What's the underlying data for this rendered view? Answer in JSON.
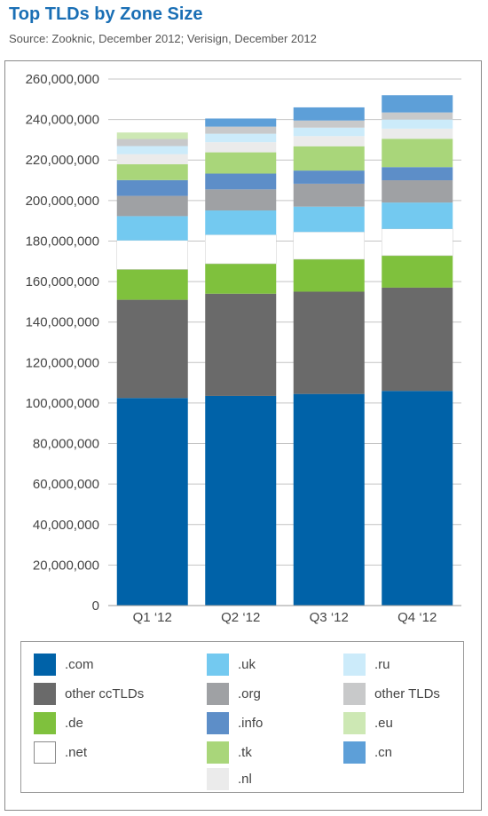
{
  "title": "Top TLDs by Zone Size",
  "subtitle": "Source: Zooknic, December 2012; Verisign, December 2012",
  "chart_data": {
    "type": "bar",
    "stacked": true,
    "categories": [
      "Q1 ‘12",
      "Q2 ‘12",
      "Q3 ‘12",
      "Q4 ‘12"
    ],
    "ylim": [
      0,
      260000000
    ],
    "yticks": [
      0,
      20000000,
      40000000,
      60000000,
      80000000,
      100000000,
      120000000,
      140000000,
      160000000,
      180000000,
      200000000,
      220000000,
      240000000,
      260000000
    ],
    "ytick_labels": [
      "0",
      "20,000,000",
      "40,000,000",
      "60,000,000",
      "80,000,000",
      "100,000,000",
      "120,000,000",
      "140,000,000",
      "160,000,000",
      "180,000,000",
      "200,000,000",
      "220,000,000",
      "240,000,000",
      "260,000,000"
    ],
    "grid": true,
    "legend_position": "bottom",
    "series": [
      {
        "name": ".com",
        "color": "#0062a8",
        "values": [
          102500000,
          103500000,
          104500000,
          106000000
        ]
      },
      {
        "name": "other ccTLDs",
        "color": "#6a6a6a",
        "values": [
          48500000,
          50500000,
          50500000,
          51000000
        ]
      },
      {
        "name": ".de",
        "color": "#7fc13d",
        "values": [
          15000000,
          14800000,
          16000000,
          15800000
        ]
      },
      {
        "name": ".net",
        "color": "#ffffff",
        "border": "#cccccc",
        "values": [
          14300000,
          14300000,
          13500000,
          13200000
        ]
      },
      {
        "name": ".uk",
        "color": "#73c9f0",
        "values": [
          12000000,
          12000000,
          12500000,
          13000000
        ]
      },
      {
        "name": ".org",
        "color": "#9fa1a4",
        "values": [
          10000000,
          10400000,
          11300000,
          11000000
        ]
      },
      {
        "name": ".info",
        "color": "#5d8ec8",
        "values": [
          7800000,
          7800000,
          6500000,
          6500000
        ]
      },
      {
        "name": ".tk",
        "color": "#a9d67a",
        "values": [
          7800000,
          10500000,
          12000000,
          14000000
        ]
      },
      {
        "name": ".nl",
        "color": "#ebebeb",
        "values": [
          5000000,
          5000000,
          5000000,
          5000000
        ]
      },
      {
        "name": ".ru",
        "color": "#ccebfa",
        "values": [
          4000000,
          4200000,
          4200000,
          4500000
        ]
      },
      {
        "name": "other TLDs",
        "color": "#c8c9ca",
        "values": [
          3500000,
          3500000,
          3500000,
          3500000
        ]
      },
      {
        "name": ".eu",
        "color": "#cde8b4",
        "values": [
          3200000,
          0,
          0,
          0
        ]
      },
      {
        "name": ".cn",
        "color": "#5d9fd8",
        "values": [
          0,
          4000000,
          6500000,
          8500000
        ]
      }
    ]
  },
  "legend": [
    {
      "name": ".com",
      "color": "#0062a8",
      "border": "#0062a8"
    },
    {
      "name": "other ccTLDs",
      "color": "#6a6a6a",
      "border": "#6a6a6a"
    },
    {
      "name": ".de",
      "color": "#7fc13d",
      "border": "#7fc13d"
    },
    {
      "name": ".net",
      "color": "#ffffff",
      "border": "#8a8a8a"
    },
    {
      "name": ".uk",
      "color": "#73c9f0",
      "border": "#73c9f0"
    },
    {
      "name": ".org",
      "color": "#9fa1a4",
      "border": "#9fa1a4"
    },
    {
      "name": ".info",
      "color": "#5d8ec8",
      "border": "#5d8ec8"
    },
    {
      "name": ".tk",
      "color": "#a9d67a",
      "border": "#a9d67a"
    },
    {
      "name": ".nl",
      "color": "#ebebeb",
      "border": "#ebebeb"
    },
    {
      "name": ".ru",
      "color": "#ccebfa",
      "border": "#ccebfa"
    },
    {
      "name": "other TLDs",
      "color": "#c8c9ca",
      "border": "#c8c9ca"
    },
    {
      "name": ".eu",
      "color": "#cde8b4",
      "border": "#cde8b4"
    },
    {
      "name": ".cn",
      "color": "#5d9fd8",
      "border": "#5d9fd8"
    }
  ]
}
